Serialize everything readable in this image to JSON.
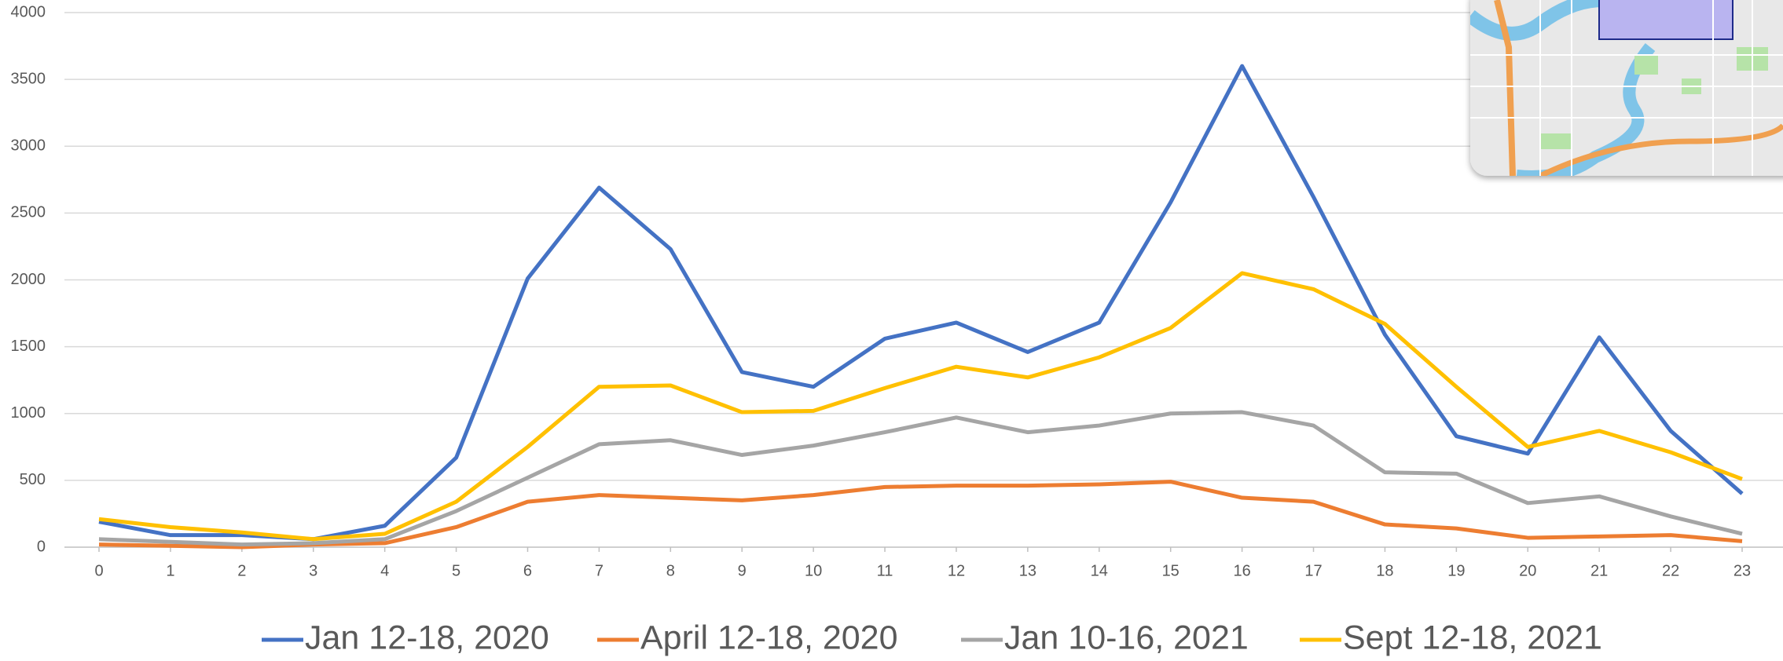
{
  "chart_data": {
    "type": "line",
    "x": [
      0,
      1,
      2,
      3,
      4,
      5,
      6,
      7,
      8,
      9,
      10,
      11,
      12,
      13,
      14,
      15,
      16,
      17,
      18,
      19,
      20,
      21,
      22,
      23
    ],
    "xlim": [
      0,
      23
    ],
    "xticks": [
      0,
      1,
      2,
      3,
      4,
      5,
      6,
      7,
      8,
      9,
      10,
      11,
      12,
      13,
      14,
      15,
      16,
      17,
      18,
      19,
      20,
      21,
      22,
      23
    ],
    "ylim": [
      0,
      4000
    ],
    "yticks": [
      0,
      500,
      1000,
      1500,
      2000,
      2500,
      3000,
      3500,
      4000
    ],
    "grid": true,
    "legend": "bottom",
    "series": [
      {
        "name": "Jan 12-18, 2020",
        "color": "#4472c4",
        "values": [
          190,
          90,
          90,
          60,
          160,
          670,
          2010,
          2690,
          2230,
          1310,
          1200,
          1560,
          1680,
          1460,
          1680,
          2580,
          3600,
          2620,
          1590,
          830,
          700,
          1570,
          870,
          400
        ]
      },
      {
        "name": "April 12-18, 2020",
        "color": "#ed7d31",
        "values": [
          20,
          10,
          0,
          20,
          30,
          150,
          340,
          390,
          370,
          350,
          390,
          450,
          460,
          460,
          470,
          490,
          370,
          340,
          170,
          140,
          70,
          80,
          90,
          45
        ]
      },
      {
        "name": "Jan 10-16, 2021",
        "color": "#a5a5a5",
        "values": [
          60,
          40,
          20,
          30,
          60,
          270,
          520,
          770,
          800,
          690,
          760,
          860,
          970,
          860,
          910,
          1000,
          1010,
          910,
          560,
          550,
          330,
          380,
          230,
          100
        ]
      },
      {
        "name": "Sept 12-18, 2021",
        "color": "#ffc000",
        "values": [
          210,
          150,
          110,
          60,
          100,
          340,
          750,
          1200,
          1210,
          1010,
          1020,
          1190,
          1350,
          1270,
          1420,
          1640,
          2050,
          1930,
          1670,
          1200,
          750,
          870,
          710,
          510
        ]
      }
    ]
  }
}
